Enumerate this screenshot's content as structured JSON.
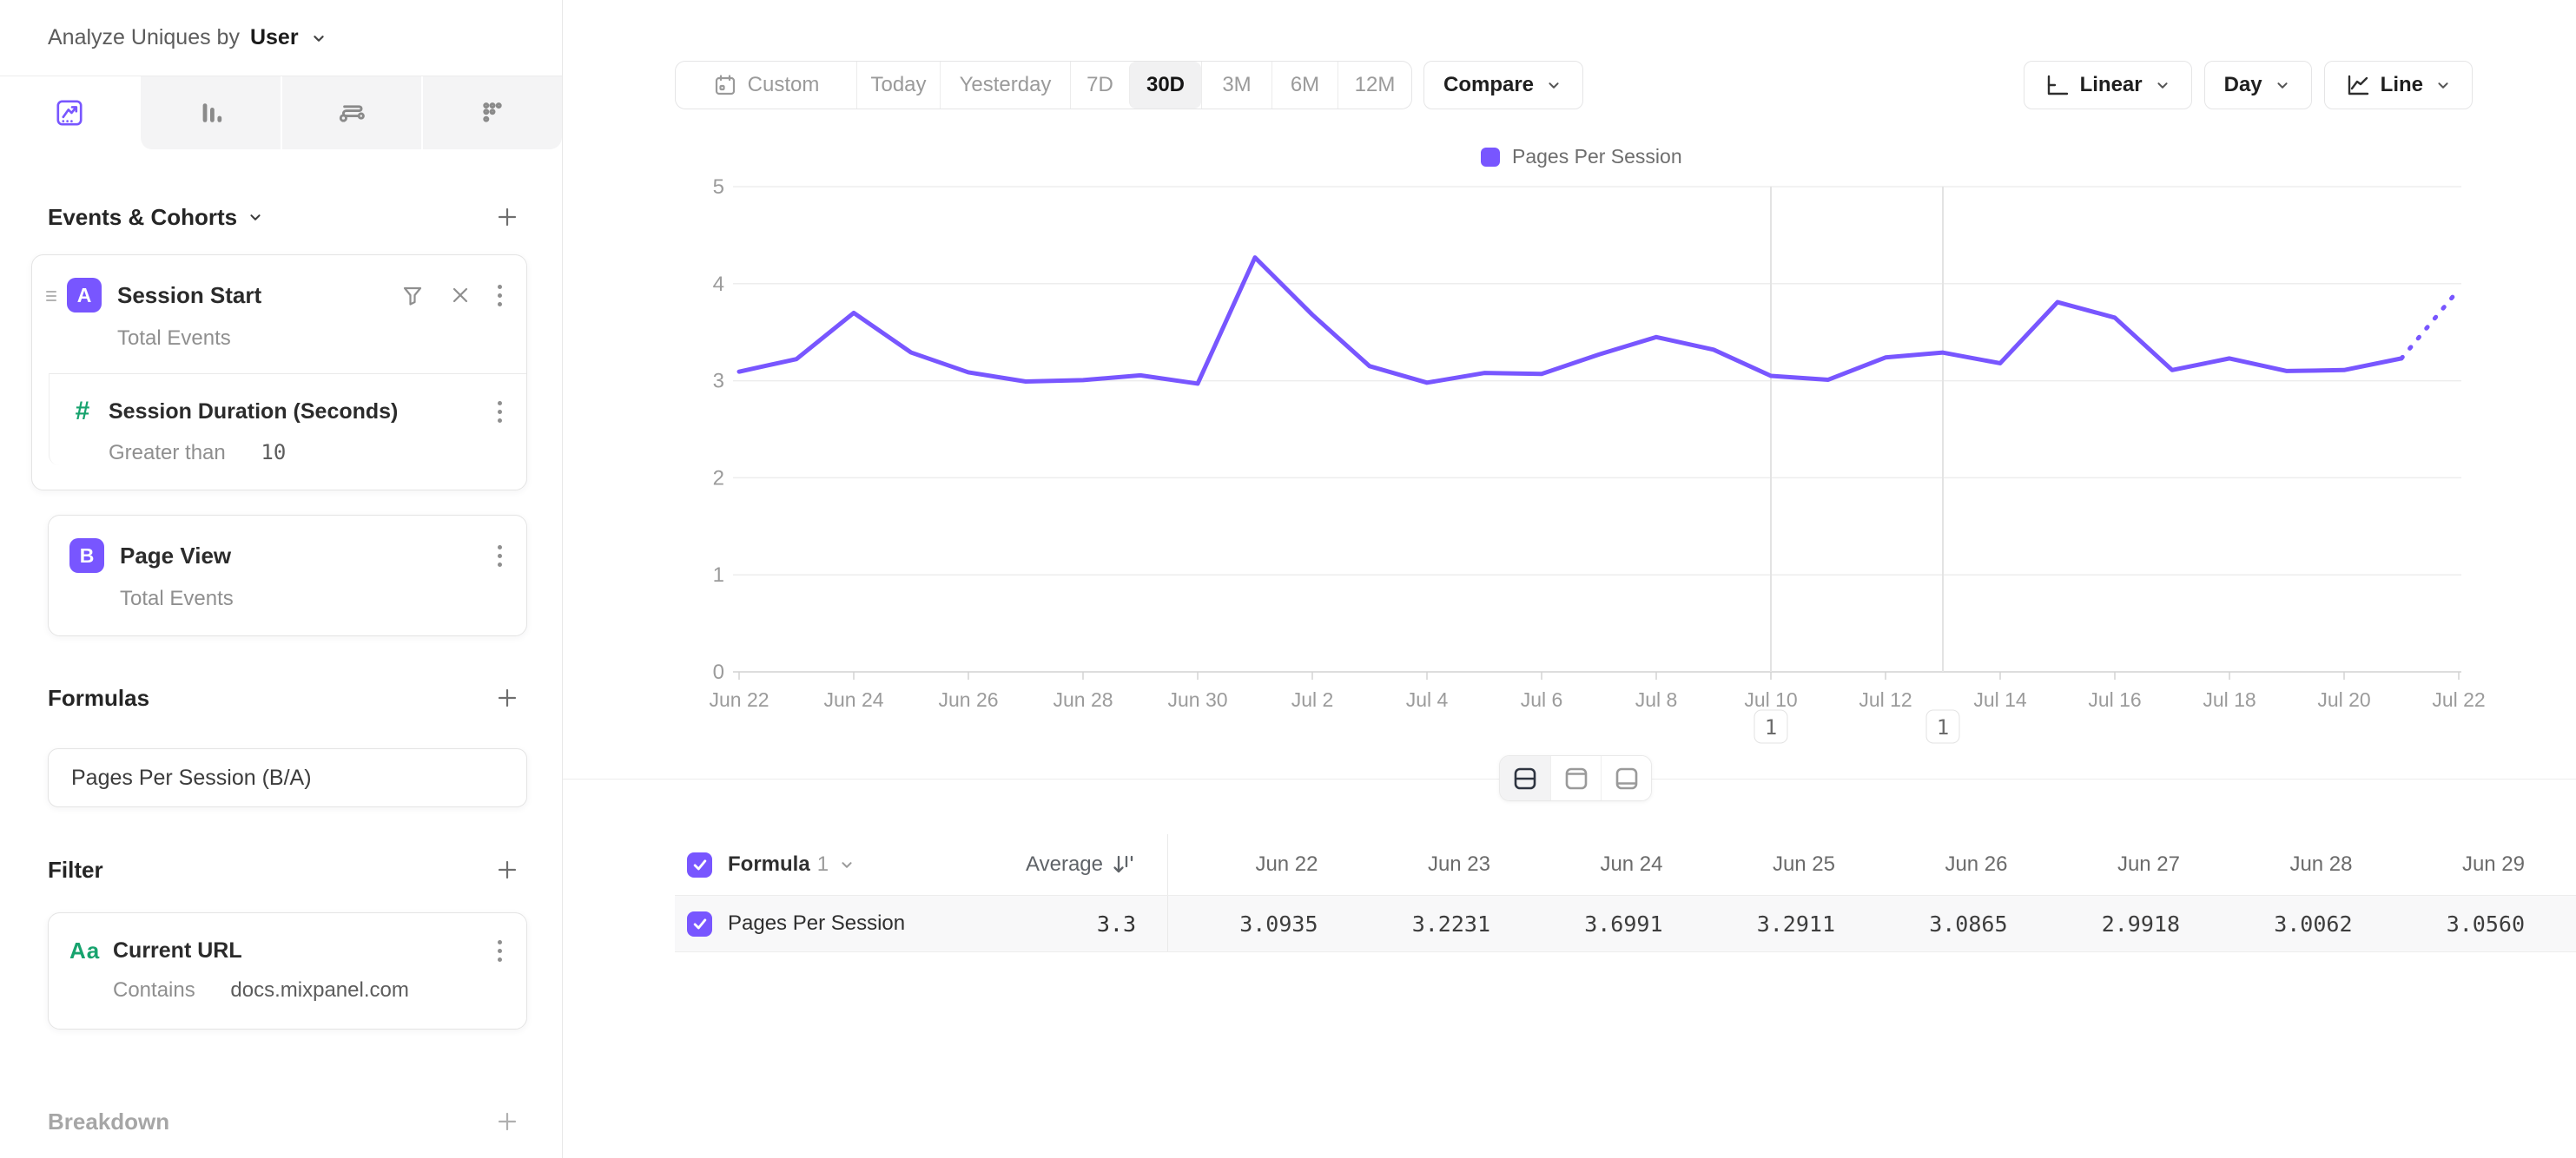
{
  "accent": "#7856ff",
  "green": "#17a36e",
  "sidebar": {
    "analyze": {
      "prefix": "Analyze Uniques by",
      "value": "User"
    },
    "tabs": [
      {
        "name": "insights",
        "active": true
      },
      {
        "name": "funnels",
        "active": false
      },
      {
        "name": "flows",
        "active": false
      },
      {
        "name": "retention",
        "active": false
      }
    ],
    "events_header": "Events & Cohorts",
    "events": [
      {
        "badge": "A",
        "title": "Session Start",
        "subtitle": "Total Events",
        "child": {
          "title": "Session Duration (Seconds)",
          "operator": "Greater than",
          "value": "10"
        }
      },
      {
        "badge": "B",
        "title": "Page View",
        "subtitle": "Total Events"
      }
    ],
    "formulas_header": "Formulas",
    "formula": "Pages Per Session (B/A)",
    "filter_header": "Filter",
    "filter": {
      "icon": "Aa",
      "title": "Current URL",
      "operator": "Contains",
      "value": "docs.mixpanel.com"
    },
    "breakdown_header": "Breakdown"
  },
  "toolbar": {
    "ranges": [
      "Custom",
      "Today",
      "Yesterday",
      "7D",
      "30D",
      "3M",
      "6M",
      "12M"
    ],
    "selected_range": "30D",
    "compare": "Compare",
    "scale": "Linear",
    "granularity": "Day",
    "chart_type": "Line"
  },
  "chart_data": {
    "type": "line",
    "x": [
      "Jun 22",
      "Jun 23",
      "Jun 24",
      "Jun 25",
      "Jun 26",
      "Jun 27",
      "Jun 28",
      "Jun 29",
      "Jun 30",
      "Jul 1",
      "Jul 2",
      "Jul 3",
      "Jul 4",
      "Jul 5",
      "Jul 6",
      "Jul 7",
      "Jul 8",
      "Jul 9",
      "Jul 10",
      "Jul 11",
      "Jul 12",
      "Jul 13",
      "Jul 14",
      "Jul 15",
      "Jul 16",
      "Jul 17",
      "Jul 18",
      "Jul 19",
      "Jul 20",
      "Jul 21",
      "Jul 22"
    ],
    "series": [
      {
        "name": "Pages Per Session",
        "color": "#7856ff",
        "values": [
          3.0935,
          3.2231,
          3.6991,
          3.2911,
          3.0865,
          2.9918,
          3.0062,
          3.056,
          2.97,
          4.27,
          3.68,
          3.15,
          2.98,
          3.08,
          3.07,
          3.27,
          3.45,
          3.32,
          3.05,
          3.01,
          3.24,
          3.29,
          3.18,
          3.81,
          3.65,
          3.11,
          3.23,
          3.1,
          3.11,
          3.23,
          3.94
        ],
        "dashed_from_index": 29
      }
    ],
    "ylim": [
      0,
      5
    ],
    "yticks": [
      0,
      1,
      2,
      3,
      4,
      5
    ],
    "x_tick_every": 2,
    "grid": true,
    "legend_position": "top",
    "annotations": [
      {
        "label": "1",
        "date": "Jul 10"
      },
      {
        "label": "1",
        "date": "Jul 13"
      }
    ]
  },
  "view_toggle": [
    {
      "name": "split-view",
      "active": true
    },
    {
      "name": "chart-only-view",
      "active": false
    },
    {
      "name": "table-only-view",
      "active": false
    }
  ],
  "table": {
    "group_label": "Formula",
    "group_index": "1",
    "average_label": "Average",
    "columns": [
      "Jun 22",
      "Jun 23",
      "Jun 24",
      "Jun 25",
      "Jun 26",
      "Jun 27",
      "Jun 28",
      "Jun 29"
    ],
    "rows": [
      {
        "name": "Pages Per Session",
        "average": "3.3",
        "checked": true,
        "values": [
          "3.0935",
          "3.2231",
          "3.6991",
          "3.2911",
          "3.0865",
          "2.9918",
          "3.0062",
          "3.0560"
        ]
      }
    ]
  }
}
